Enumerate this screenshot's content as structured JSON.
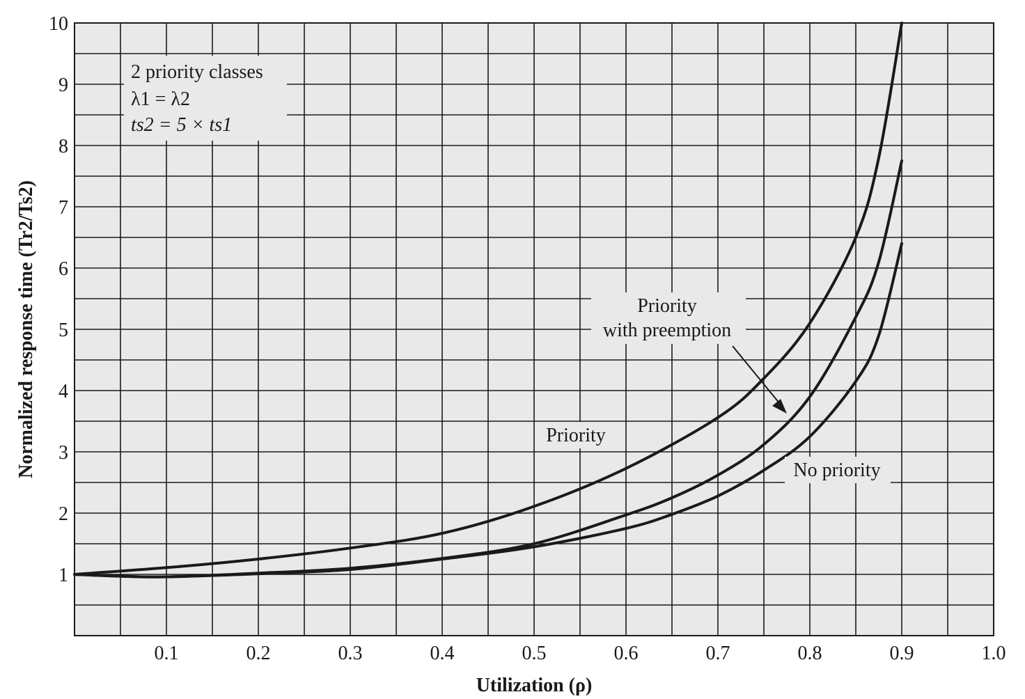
{
  "chart_data": {
    "type": "line",
    "title": "",
    "xlabel": "Utilization (ρ)",
    "ylabel": "Normalized response time (Tr2/Ts2)",
    "xlim": [
      0,
      1.0
    ],
    "ylim": [
      0,
      10
    ],
    "x_ticks": [
      0.1,
      0.2,
      0.3,
      0.4,
      0.5,
      0.6,
      0.7,
      0.8,
      0.9,
      1.0
    ],
    "x_tick_labels": [
      "0.1",
      "0.2",
      "0.3",
      "0.4",
      "0.5",
      "0.6",
      "0.7",
      "0.8",
      "0.9",
      "1.0"
    ],
    "y_ticks": [
      1,
      2,
      3,
      4,
      5,
      6,
      7,
      8,
      9,
      10
    ],
    "y_tick_labels": [
      "1",
      "2",
      "3",
      "4",
      "5",
      "6",
      "7",
      "8",
      "9",
      "10"
    ],
    "grid": true,
    "grid_color": "#e8e9e8",
    "line_color": "#1a1a1a",
    "background": "#ffffff",
    "conditions": {
      "line1": "2 priority classes",
      "line2": "λ1 = λ2",
      "line3": "ts2 = 5 × ts1"
    },
    "annotations": {
      "priority": "Priority",
      "preemption_line1": "Priority",
      "preemption_line2": "with preemption",
      "no_priority": "No priority"
    },
    "series": [
      {
        "name": "Priority",
        "x": [
          0,
          0.1,
          0.2,
          0.3,
          0.4,
          0.5,
          0.6,
          0.7,
          0.75,
          0.8,
          0.85,
          0.875,
          0.9
        ],
        "y": [
          1.0,
          1.11,
          1.25,
          1.43,
          1.67,
          2.11,
          2.73,
          3.56,
          4.2,
          5.1,
          6.5,
          7.8,
          10.0
        ]
      },
      {
        "name": "No priority",
        "x": [
          0,
          0.05,
          0.1,
          0.2,
          0.3,
          0.4,
          0.5,
          0.6,
          0.65,
          0.7,
          0.75,
          0.8,
          0.85,
          0.875,
          0.9
        ],
        "y": [
          1.0,
          0.97,
          0.96,
          1.01,
          1.08,
          1.25,
          1.45,
          1.75,
          1.98,
          2.28,
          2.7,
          3.25,
          4.15,
          4.9,
          6.4
        ]
      },
      {
        "name": "Priority with preemption",
        "x": [
          0,
          0.05,
          0.1,
          0.2,
          0.3,
          0.4,
          0.5,
          0.6,
          0.65,
          0.7,
          0.75,
          0.8,
          0.85,
          0.875,
          0.9
        ],
        "y": [
          1.0,
          0.97,
          0.96,
          1.02,
          1.1,
          1.26,
          1.5,
          1.97,
          2.25,
          2.62,
          3.12,
          3.9,
          5.2,
          6.1,
          7.75
        ]
      }
    ]
  }
}
